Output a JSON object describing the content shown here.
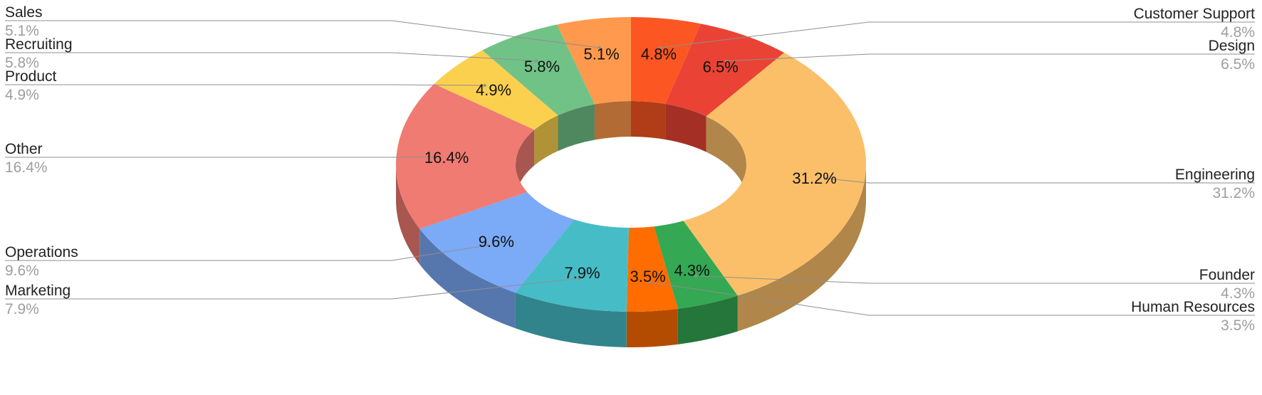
{
  "chart_data": {
    "type": "pie",
    "donut": true,
    "three_d": true,
    "legend": "callout-labels",
    "slices": [
      {
        "label": "Customer Support",
        "value": 4.8,
        "pct_label": "4.8%",
        "color": "#fc5722",
        "side": "right"
      },
      {
        "label": "Design",
        "value": 6.5,
        "pct_label": "6.5%",
        "color": "#ea4335",
        "side": "right"
      },
      {
        "label": "Engineering",
        "value": 31.2,
        "pct_label": "31.2%",
        "color": "#fbbf69",
        "side": "right"
      },
      {
        "label": "Founder",
        "value": 4.3,
        "pct_label": "4.3%",
        "color": "#34a853",
        "side": "right"
      },
      {
        "label": "Human Resources",
        "value": 3.5,
        "pct_label": "3.5%",
        "color": "#ff6d00",
        "side": "right"
      },
      {
        "label": "Marketing",
        "value": 7.9,
        "pct_label": "7.9%",
        "color": "#46bdc6",
        "side": "left"
      },
      {
        "label": "Operations",
        "value": 9.6,
        "pct_label": "9.6%",
        "color": "#7baaf7",
        "side": "left"
      },
      {
        "label": "Other",
        "value": 16.4,
        "pct_label": "16.4%",
        "color": "#f07b72",
        "side": "left"
      },
      {
        "label": "Product",
        "value": 4.9,
        "pct_label": "4.9%",
        "color": "#fcd04f",
        "side": "left"
      },
      {
        "label": "Recruiting",
        "value": 5.8,
        "pct_label": "5.8%",
        "color": "#71c287",
        "side": "left"
      },
      {
        "label": "Sales",
        "value": 5.1,
        "pct_label": "5.1%",
        "color": "#ff994d",
        "side": "left"
      }
    ]
  }
}
